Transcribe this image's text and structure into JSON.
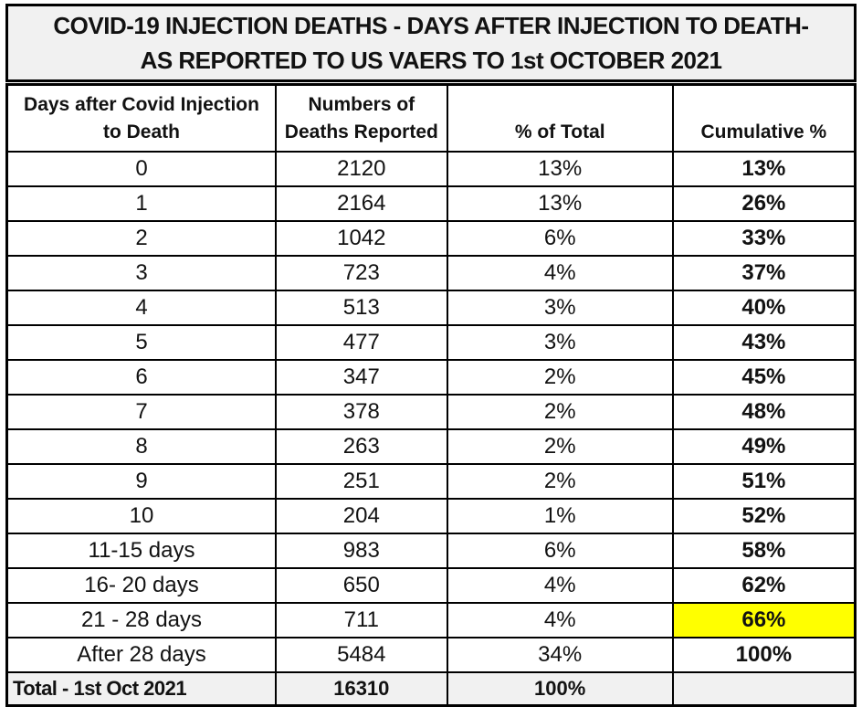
{
  "title": {
    "line1": "COVID-19 INJECTION DEATHS - DAYS AFTER INJECTION TO DEATH-",
    "line2": "AS REPORTED TO US VAERS TO 1st OCTOBER 2021"
  },
  "table": {
    "columns": [
      {
        "line1": "Days after Covid Injection",
        "line2": "to Death"
      },
      {
        "line1": "Numbers of",
        "line2": "Deaths Reported"
      },
      {
        "line1": "% of Total",
        "line2": ""
      },
      {
        "line1": "Cumulative %",
        "line2": ""
      }
    ],
    "rows": [
      {
        "days": "0",
        "deaths": "2120",
        "pct": "13%",
        "cum": "13%",
        "highlight": false
      },
      {
        "days": "1",
        "deaths": "2164",
        "pct": "13%",
        "cum": "26%",
        "highlight": false
      },
      {
        "days": "2",
        "deaths": "1042",
        "pct": "6%",
        "cum": "33%",
        "highlight": false
      },
      {
        "days": "3",
        "deaths": "723",
        "pct": "4%",
        "cum": "37%",
        "highlight": false
      },
      {
        "days": "4",
        "deaths": "513",
        "pct": "3%",
        "cum": "40%",
        "highlight": false
      },
      {
        "days": "5",
        "deaths": "477",
        "pct": "3%",
        "cum": "43%",
        "highlight": false
      },
      {
        "days": "6",
        "deaths": "347",
        "pct": "2%",
        "cum": "45%",
        "highlight": false
      },
      {
        "days": "7",
        "deaths": "378",
        "pct": "2%",
        "cum": "48%",
        "highlight": false
      },
      {
        "days": "8",
        "deaths": "263",
        "pct": "2%",
        "cum": "49%",
        "highlight": false
      },
      {
        "days": "9",
        "deaths": "251",
        "pct": "2%",
        "cum": "51%",
        "highlight": false
      },
      {
        "days": "10",
        "deaths": "204",
        "pct": "1%",
        "cum": "52%",
        "highlight": false
      },
      {
        "days": "11-15 days",
        "deaths": "983",
        "pct": "6%",
        "cum": "58%",
        "highlight": false
      },
      {
        "days": "16- 20 days",
        "deaths": "650",
        "pct": "4%",
        "cum": "62%",
        "highlight": false
      },
      {
        "days": "21 - 28 days",
        "deaths": "711",
        "pct": "4%",
        "cum": "66%",
        "highlight": true
      },
      {
        "days": "After 28 days",
        "deaths": "5484",
        "pct": "34%",
        "cum": "100%",
        "highlight": false
      }
    ],
    "total": {
      "label": "Total - 1st Oct 2021",
      "deaths": "16310",
      "pct": "100%",
      "cum": ""
    }
  },
  "colors": {
    "highlight": "#ffff00",
    "band_bg": "#f1f1f1",
    "border": "#000000",
    "text": "#121212"
  },
  "chart_data": {
    "type": "table",
    "title": "COVID-19 INJECTION DEATHS - DAYS AFTER INJECTION TO DEATH- AS REPORTED TO US VAERS TO 1st OCTOBER 2021",
    "columns": [
      "Days after Covid Injection to Death",
      "Numbers of Deaths Reported",
      "% of Total",
      "Cumulative %"
    ],
    "rows": [
      [
        "0",
        2120,
        "13%",
        "13%"
      ],
      [
        "1",
        2164,
        "13%",
        "26%"
      ],
      [
        "2",
        1042,
        "6%",
        "33%"
      ],
      [
        "3",
        723,
        "4%",
        "37%"
      ],
      [
        "4",
        513,
        "3%",
        "40%"
      ],
      [
        "5",
        477,
        "3%",
        "43%"
      ],
      [
        "6",
        347,
        "2%",
        "45%"
      ],
      [
        "7",
        378,
        "2%",
        "48%"
      ],
      [
        "8",
        263,
        "2%",
        "49%"
      ],
      [
        "9",
        251,
        "2%",
        "51%"
      ],
      [
        "10",
        204,
        "1%",
        "52%"
      ],
      [
        "11-15 days",
        983,
        "6%",
        "58%"
      ],
      [
        "16- 20 days",
        650,
        "4%",
        "62%"
      ],
      [
        "21 - 28 days",
        711,
        "4%",
        "66%"
      ],
      [
        "After 28 days",
        5484,
        "34%",
        "100%"
      ]
    ],
    "total_row": [
      "Total - 1st Oct 2021",
      16310,
      "100%",
      ""
    ],
    "highlighted_cell": {
      "row": "21 - 28 days",
      "column": "Cumulative %",
      "value": "66%",
      "color": "#ffff00"
    },
    "layout_hints": {
      "cumulative_column_bold": true,
      "total_row_shaded": true,
      "title_band_shaded": true
    }
  }
}
